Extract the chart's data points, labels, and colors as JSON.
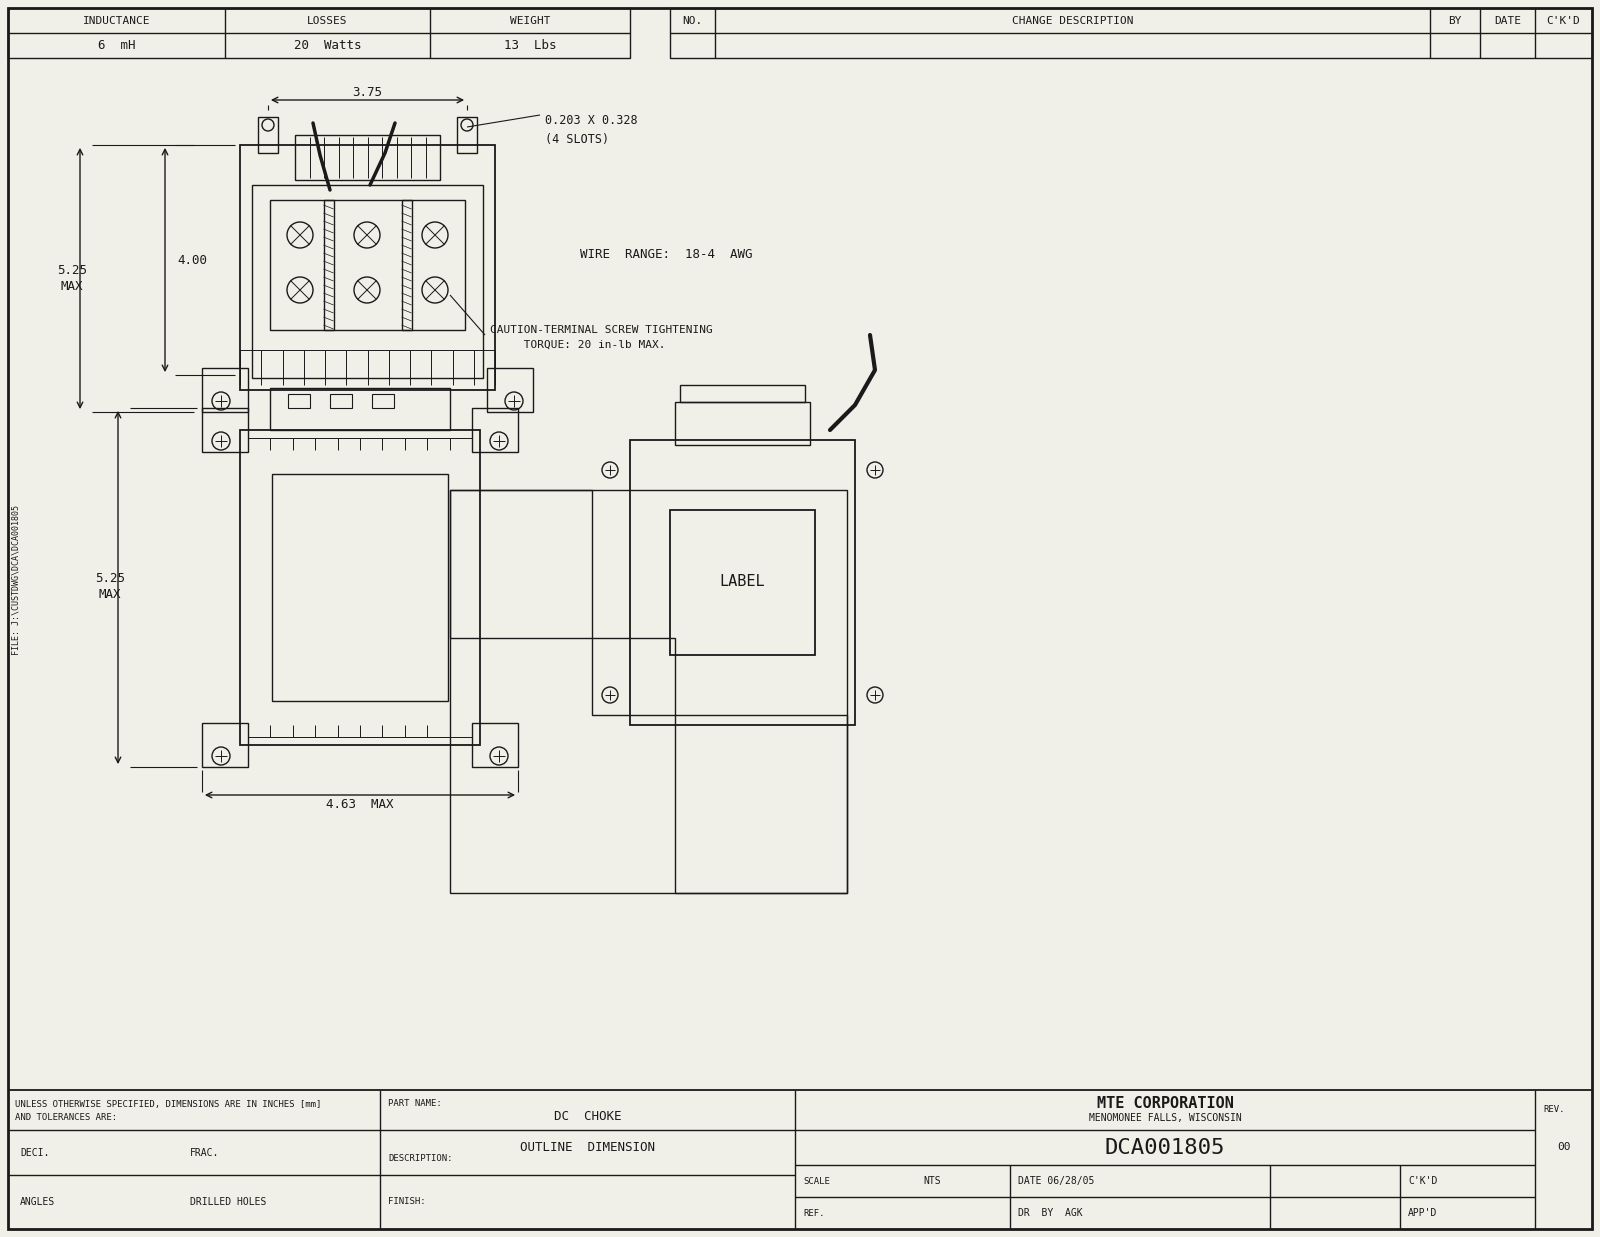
{
  "bg_color": "#f0f0e8",
  "line_color": "#1a1a1a",
  "title_company": "MTE CORPORATION",
  "title_location": "MENOMONEE FALLS, WISCONSIN",
  "part_number": "DCA001805",
  "part_name": "DC  CHOKE",
  "description": "OUTLINE  DIMENSION",
  "scale": "NTS",
  "date": "06/28/05",
  "drawn_by": "AGK",
  "rev": "00",
  "inductance": "6  mH",
  "losses": "20  Watts",
  "weight": "13  Lbs",
  "file_path": "FILE: J:\\CUSTDWG\\DCA\\DCA001805",
  "dim_375": "3.75",
  "dim_slot": "0.203 X 0.328",
  "dim_4slots": "(4 SLOTS)",
  "dim_400": "4.00",
  "wire_range": "WIRE  RANGE:  18-4  AWG",
  "caution_line1": "CAUTION-TERMINAL SCREW TIGHTENING",
  "caution_line2": "     TORQUE: 20 in-lb MAX.",
  "dim_525": "5.25",
  "dim_max": "MAX",
  "dim_463max": "4.63  MAX",
  "tolerance_text1": "UNLESS OTHERWISE SPECIFIED, DIMENSIONS ARE IN INCHES [mm]",
  "tolerance_text2": "AND TOLERANCES ARE:",
  "deci_label": "DECI.",
  "frac_label": "FRAC.",
  "angles_label": "ANGLES",
  "drilled_label": "DRILLED HOLES",
  "no_label": "NO.",
  "change_desc": "CHANGE DESCRIPTION",
  "by_label": "BY",
  "date_label": "DATE",
  "ckd_label": "C'K'D",
  "scale_label": "SCALE",
  "ref_label": "REF.",
  "dr_by_label": "DR  BY",
  "appd_label": "APP'D",
  "part_name_label": "PART NAME:",
  "description_label": "DESCRIPTION:",
  "finish_label": "FINISH:",
  "rev_label": "REV."
}
